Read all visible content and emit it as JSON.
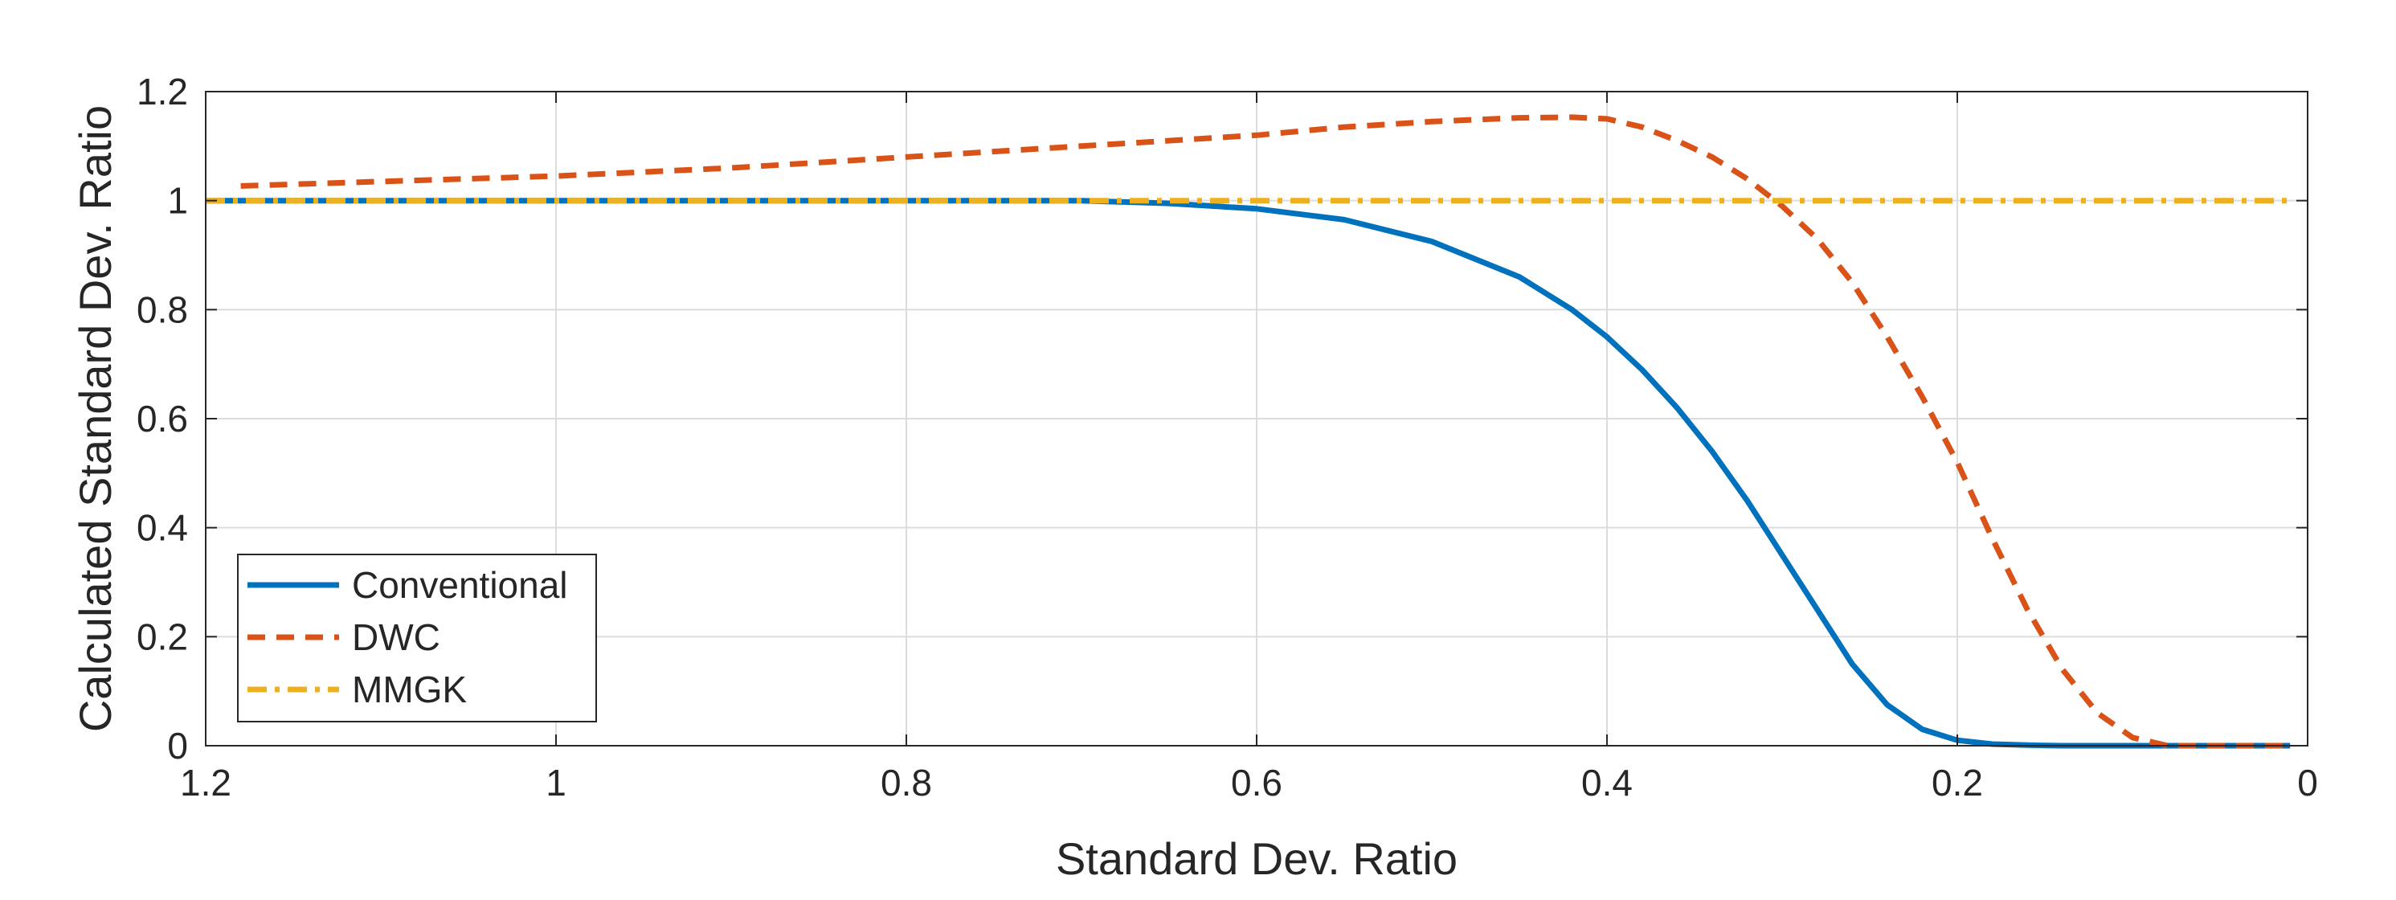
{
  "chart_data": {
    "type": "line",
    "title": "",
    "xlabel": "Standard Dev. Ratio",
    "ylabel": "Calculated Standard Dev. Ratio",
    "xlim": [
      0,
      1.2
    ],
    "x_reversed": true,
    "ylim": [
      0,
      1.2
    ],
    "grid": true,
    "legend_position": "bottom-left",
    "colors": {
      "axis": "#262626",
      "grid": "#dcdcdc"
    },
    "x_ticks": [
      {
        "value": 1.2,
        "label": "1.2"
      },
      {
        "value": 1.0,
        "label": "1"
      },
      {
        "value": 0.8,
        "label": "0.8"
      },
      {
        "value": 0.6,
        "label": "0.6"
      },
      {
        "value": 0.4,
        "label": "0.4"
      },
      {
        "value": 0.2,
        "label": "0.2"
      },
      {
        "value": 0.0,
        "label": "0"
      }
    ],
    "y_ticks": [
      {
        "value": 0.0,
        "label": "0"
      },
      {
        "value": 0.2,
        "label": "0.2"
      },
      {
        "value": 0.4,
        "label": "0.4"
      },
      {
        "value": 0.6,
        "label": "0.6"
      },
      {
        "value": 0.8,
        "label": "0.8"
      },
      {
        "value": 1.0,
        "label": "1"
      },
      {
        "value": 1.2,
        "label": "1.2"
      }
    ],
    "series": [
      {
        "name": "Conventional",
        "color": "#0072BD",
        "style": "solid",
        "x": [
          1.2,
          1.1,
          1.0,
          0.9,
          0.8,
          0.7,
          0.65,
          0.6,
          0.55,
          0.5,
          0.45,
          0.42,
          0.4,
          0.38,
          0.36,
          0.34,
          0.32,
          0.3,
          0.28,
          0.26,
          0.24,
          0.22,
          0.2,
          0.18,
          0.16,
          0.14,
          0.1,
          0.05,
          0.01
        ],
        "y": [
          1.0,
          1.0,
          1.0,
          1.0,
          1.0,
          1.0,
          0.995,
          0.985,
          0.965,
          0.925,
          0.86,
          0.8,
          0.75,
          0.69,
          0.62,
          0.54,
          0.45,
          0.35,
          0.25,
          0.15,
          0.075,
          0.03,
          0.01,
          0.003,
          0.001,
          0.0,
          0.0,
          0.0,
          0.0
        ]
      },
      {
        "name": "DWC",
        "color": "#D95319",
        "style": "dashed",
        "x": [
          1.18,
          1.1,
          1.0,
          0.9,
          0.8,
          0.7,
          0.6,
          0.55,
          0.5,
          0.45,
          0.42,
          0.4,
          0.38,
          0.36,
          0.34,
          0.32,
          0.3,
          0.28,
          0.26,
          0.24,
          0.22,
          0.2,
          0.18,
          0.16,
          0.14,
          0.12,
          0.1,
          0.08,
          0.05,
          0.01
        ],
        "y": [
          1.027,
          1.035,
          1.045,
          1.06,
          1.08,
          1.1,
          1.12,
          1.135,
          1.145,
          1.152,
          1.153,
          1.15,
          1.135,
          1.11,
          1.08,
          1.04,
          0.99,
          0.93,
          0.85,
          0.75,
          0.64,
          0.52,
          0.38,
          0.25,
          0.14,
          0.06,
          0.015,
          0.0,
          0.0,
          0.0
        ]
      },
      {
        "name": "MMGK",
        "color": "#EDB120",
        "style": "dashdot",
        "x": [
          1.2,
          0.01
        ],
        "y": [
          1.0,
          1.0
        ]
      }
    ]
  }
}
